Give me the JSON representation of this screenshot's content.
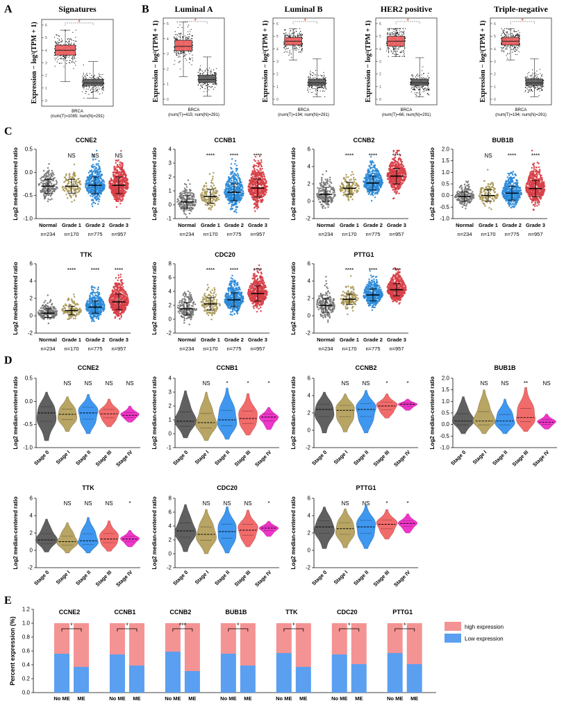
{
  "panel_letters": [
    "A",
    "B",
    "C",
    "D",
    "E"
  ],
  "colors": {
    "tumor": "#f06060",
    "normal": "#606060",
    "grade_normal": "#808080",
    "grade1": "#b5a25c",
    "grade2": "#2f95e8",
    "grade3": "#e8454e",
    "stage0": "#606060",
    "stage1": "#b8a564",
    "stage2": "#3f97ef",
    "stage3": "#f26b6b",
    "stage4": "#ef36c9",
    "high": "#f49393",
    "low": "#5a9ff0",
    "sig": "#d9351f"
  },
  "chart_data": [
    {
      "id": "A",
      "type": "box",
      "panels": [
        {
          "title": "Signatures",
          "ylabel": "Expression − log²(TPM + 1)",
          "ylim": [
            0,
            6
          ],
          "ticks": [
            0,
            1,
            2,
            3,
            4,
            5,
            6
          ],
          "xlabel": "BRCA",
          "xsub": "(num(T)=1085; num(N)=291)",
          "groups": [
            {
              "name": "Tumor",
              "median": 4.0,
              "q1": 3.6,
              "q3": 4.4,
              "min": 1.5,
              "max": 5.6
            },
            {
              "name": "Normal",
              "median": 1.4,
              "q1": 1.2,
              "q3": 1.7,
              "min": 0.2,
              "max": 3.1
            }
          ],
          "sig": "*"
        },
        {
          "title": "Luminal A",
          "ylabel": "Expression − log²(TPM + 1)",
          "ylim": [
            0,
            5
          ],
          "ticks": [
            0,
            1,
            2,
            3,
            4,
            5
          ],
          "xlabel": "BRCA",
          "xsub": "(num(T)=415; num(N)=291)",
          "groups": [
            {
              "name": "Tumor",
              "median": 3.5,
              "q1": 3.2,
              "q3": 3.9,
              "min": 1.5,
              "max": 5.1
            },
            {
              "name": "Normal",
              "median": 1.3,
              "q1": 1.1,
              "q3": 1.6,
              "min": 0.2,
              "max": 2.8
            }
          ],
          "sig": "*"
        },
        {
          "title": "Luminal B",
          "ylabel": "Expression − log²(TPM + 1)",
          "ylim": [
            0,
            6
          ],
          "ticks": [
            0,
            1,
            2,
            3,
            4,
            5,
            6
          ],
          "xlabel": "BRCA",
          "xsub": "(num(T)=194; num(N)=291)",
          "groups": [
            {
              "name": "Tumor",
              "median": 4.6,
              "q1": 4.3,
              "q3": 4.9,
              "min": 3.1,
              "max": 5.6
            },
            {
              "name": "Normal",
              "median": 1.3,
              "q1": 1.1,
              "q3": 1.6,
              "min": 0.2,
              "max": 3.2
            }
          ],
          "sig": "*"
        },
        {
          "title": "HER2 positive",
          "ylabel": "Expression − log²(TPM + 1)",
          "ylim": [
            0,
            6
          ],
          "ticks": [
            0,
            1,
            2,
            3,
            4,
            5,
            6
          ],
          "xlabel": "BRCA",
          "xsub": "(num(T)=66; num(N)=291)",
          "groups": [
            {
              "name": "Tumor",
              "median": 4.6,
              "q1": 4.2,
              "q3": 5.0,
              "min": 3.4,
              "max": 5.6
            },
            {
              "name": "Normal",
              "median": 1.3,
              "q1": 1.1,
              "q3": 1.6,
              "min": 0.2,
              "max": 3.3
            }
          ],
          "sig": "*"
        },
        {
          "title": "Triple-negative",
          "ylabel": "Expression − log²(TPM + 1)",
          "ylim": [
            0,
            6
          ],
          "ticks": [
            0,
            1,
            2,
            3,
            4,
            5,
            6
          ],
          "xlabel": "BRCA",
          "xsub": "(num(T)=194; num(N)=291)",
          "groups": [
            {
              "name": "Tumor",
              "median": 4.6,
              "q1": 4.3,
              "q3": 4.9,
              "min": 3.1,
              "max": 5.6
            },
            {
              "name": "Normal",
              "median": 1.3,
              "q1": 1.1,
              "q3": 1.6,
              "min": 0.2,
              "max": 3.2
            }
          ],
          "sig": "*"
        }
      ]
    },
    {
      "id": "C",
      "type": "scatter",
      "ylabel": "Log2 median-centered ratio",
      "categories": [
        "Normal",
        "Grade 1",
        "Grade 2",
        "Grade 3"
      ],
      "counts": [
        "n=234",
        "n=170",
        "n=775",
        "n=957"
      ],
      "panels": [
        {
          "title": "CCNE2",
          "ylim": [
            -1.0,
            0.5
          ],
          "ticks": [
            "-1.0",
            "-0.5",
            "0.0",
            "0.5"
          ],
          "tickvals": [
            -1,
            -0.5,
            0,
            0.5
          ],
          "medians": [
            -0.3,
            -0.3,
            -0.28,
            -0.28
          ],
          "spread": [
            0.15,
            0.15,
            0.18,
            0.18
          ],
          "sig": [
            "",
            "NS",
            "NS",
            "NS"
          ]
        },
        {
          "title": "CCNB1",
          "ylim": [
            -1,
            4
          ],
          "ticks": [
            "-1",
            "0",
            "1",
            "2",
            "3",
            "4"
          ],
          "tickvals": [
            -1,
            0,
            1,
            2,
            3,
            4
          ],
          "medians": [
            0.2,
            0.6,
            0.9,
            1.2
          ],
          "spread": [
            0.45,
            0.5,
            0.6,
            0.65
          ],
          "sig": [
            "",
            "****",
            "****",
            "****"
          ]
        },
        {
          "title": "CCNB2",
          "ylim": [
            -2,
            6
          ],
          "ticks": [
            "-2",
            "0",
            "2",
            "4",
            "6"
          ],
          "tickvals": [
            -2,
            0,
            2,
            4,
            6
          ],
          "medians": [
            0.8,
            1.5,
            2.1,
            2.9
          ],
          "spread": [
            0.8,
            0.7,
            0.8,
            0.9
          ],
          "sig": [
            "",
            "****",
            "****",
            "****"
          ]
        },
        {
          "title": "BUB1B",
          "ylim": [
            -1.0,
            2.0
          ],
          "ticks": [
            "-1.0",
            "-0.5",
            "0.0",
            "0.5",
            "1.0",
            "1.5",
            "2.0"
          ],
          "tickvals": [
            -1,
            -0.5,
            0,
            0.5,
            1,
            1.5,
            2
          ],
          "medians": [
            -0.05,
            0.0,
            0.1,
            0.3
          ],
          "spread": [
            0.2,
            0.25,
            0.3,
            0.35
          ],
          "sig": [
            "",
            "NS",
            "****",
            "****"
          ]
        },
        {
          "title": "TTK",
          "ylim": [
            -2,
            6
          ],
          "ticks": [
            "-2",
            "0",
            "2",
            "4",
            "6"
          ],
          "tickvals": [
            -2,
            0,
            2,
            4,
            6
          ],
          "medians": [
            0.3,
            0.6,
            1.0,
            1.6
          ],
          "spread": [
            0.5,
            0.5,
            0.7,
            0.9
          ],
          "sig": [
            "",
            "****",
            "****",
            "****"
          ]
        },
        {
          "title": "CDC20",
          "ylim": [
            -2,
            8
          ],
          "ticks": [
            "-2",
            "0",
            "2",
            "4",
            "6",
            "8"
          ],
          "tickvals": [
            -2,
            0,
            2,
            4,
            6,
            8
          ],
          "medians": [
            1.5,
            2.2,
            2.8,
            3.7
          ],
          "spread": [
            0.9,
            0.9,
            1.0,
            1.1
          ],
          "sig": [
            "",
            "****",
            "****",
            "****"
          ]
        },
        {
          "title": "PTTG1",
          "ylim": [
            -2,
            6
          ],
          "ticks": [
            "-2",
            "0",
            "2",
            "4",
            "6"
          ],
          "tickvals": [
            -2,
            0,
            2,
            4,
            6
          ],
          "medians": [
            1.2,
            1.9,
            2.4,
            3.0
          ],
          "spread": [
            0.8,
            0.6,
            0.7,
            0.7
          ],
          "sig": [
            "",
            "****",
            "****",
            "****"
          ]
        }
      ]
    },
    {
      "id": "D",
      "type": "violin",
      "ylabel": "Log2 median-centered ratio",
      "categories": [
        "Stage 0",
        "Stage I",
        "Stage II",
        "Stage III",
        "Stage IV"
      ],
      "panels": [
        {
          "title": "CCNE2",
          "ylim": [
            -1.0,
            0.5
          ],
          "ticks": [
            "-1.0",
            "-0.5",
            "0.0",
            "0.5"
          ],
          "tickvals": [
            -1,
            -0.5,
            0,
            0.5
          ],
          "medians": [
            -0.25,
            -0.28,
            -0.25,
            -0.27,
            -0.3
          ],
          "ranges": [
            [
              -0.85,
              0.2
            ],
            [
              -0.65,
              0.1
            ],
            [
              -0.7,
              0.15
            ],
            [
              -0.55,
              0.05
            ],
            [
              -0.45,
              -0.1
            ]
          ],
          "sig": [
            "",
            "NS",
            "NS",
            "NS",
            "NS"
          ]
        },
        {
          "title": "CCNB1",
          "ylim": [
            -1,
            4
          ],
          "ticks": [
            "-1",
            "0",
            "1",
            "2",
            "3",
            "4"
          ],
          "tickvals": [
            -1,
            0,
            1,
            2,
            3,
            4
          ],
          "medians": [
            0.9,
            0.8,
            1.0,
            1.1,
            1.2
          ],
          "ranges": [
            [
              -0.3,
              3.1
            ],
            [
              -0.5,
              3.0
            ],
            [
              -0.4,
              3.3
            ],
            [
              -0.1,
              2.9
            ],
            [
              0.3,
              1.9
            ]
          ],
          "sig": [
            "",
            "NS",
            "*",
            "*",
            "*"
          ]
        },
        {
          "title": "CCNB2",
          "ylim": [
            -2,
            6
          ],
          "ticks": [
            "-2",
            "0",
            "2",
            "4",
            "6"
          ],
          "tickvals": [
            -2,
            0,
            2,
            4,
            6
          ],
          "medians": [
            2.4,
            2.3,
            2.4,
            2.8,
            3.0
          ],
          "ranges": [
            [
              -0.3,
              4.4
            ],
            [
              -0.2,
              4.2
            ],
            [
              -0.3,
              4.6
            ],
            [
              1.4,
              4.2
            ],
            [
              2.3,
              3.6
            ]
          ],
          "sig": [
            "",
            "NS",
            "NS",
            "*",
            "*"
          ]
        },
        {
          "title": "BUB1B",
          "ylim": [
            -1.0,
            2.0
          ],
          "ticks": [
            "-1.0",
            "-0.5",
            "0.0",
            "0.5",
            "1.0",
            "1.5",
            "2.0"
          ],
          "tickvals": [
            -1,
            -0.5,
            0,
            0.5,
            1,
            1.5,
            2
          ],
          "medians": [
            0.15,
            0.15,
            0.15,
            0.3,
            0.1
          ],
          "ranges": [
            [
              -0.4,
              1.2
            ],
            [
              -0.4,
              1.5
            ],
            [
              -0.4,
              1.1
            ],
            [
              -0.3,
              1.6
            ],
            [
              -0.2,
              0.45
            ]
          ],
          "sig": [
            "",
            "NS",
            "NS",
            "**",
            "NS"
          ]
        },
        {
          "title": "TTK",
          "ylim": [
            -2,
            6
          ],
          "ticks": [
            "-2",
            "0",
            "2",
            "4",
            "6"
          ],
          "tickvals": [
            -2,
            0,
            2,
            4,
            6
          ],
          "medians": [
            1.2,
            1.0,
            1.1,
            1.3,
            1.3
          ],
          "ranges": [
            [
              -0.2,
              3.6
            ],
            [
              -0.3,
              3.2
            ],
            [
              -0.3,
              3.8
            ],
            [
              -0.1,
              3.4
            ],
            [
              0.4,
              2.3
            ]
          ],
          "sig": [
            "",
            "NS",
            "NS",
            "NS",
            "*"
          ]
        },
        {
          "title": "CDC20",
          "ylim": [
            -2,
            8
          ],
          "ticks": [
            "-2",
            "0",
            "2",
            "4",
            "6",
            "8"
          ],
          "tickvals": [
            -2,
            0,
            2,
            4,
            6,
            8
          ],
          "medians": [
            3.3,
            2.8,
            3.2,
            3.4,
            3.7
          ],
          "ranges": [
            [
              0.3,
              7.1
            ],
            [
              0.0,
              6.4
            ],
            [
              0.1,
              6.8
            ],
            [
              1.0,
              6.3
            ],
            [
              2.5,
              4.7
            ]
          ],
          "sig": [
            "",
            "NS",
            "NS",
            "NS",
            "*"
          ]
        },
        {
          "title": "PTTG1",
          "ylim": [
            -2,
            6
          ],
          "ticks": [
            "-2",
            "0",
            "2",
            "4",
            "6"
          ],
          "tickvals": [
            -2,
            0,
            2,
            4,
            6
          ],
          "medians": [
            2.7,
            2.5,
            2.7,
            3.0,
            3.1
          ],
          "ranges": [
            [
              0.2,
              5.0
            ],
            [
              0.3,
              4.8
            ],
            [
              0.2,
              5.2
            ],
            [
              1.3,
              4.7
            ],
            [
              2.0,
              4.2
            ]
          ],
          "sig": [
            "",
            "NS",
            "NS",
            "*",
            "*"
          ]
        }
      ]
    },
    {
      "id": "E",
      "type": "bar",
      "stacked": true,
      "ylabel": "Percent expression (%)",
      "ylim": [
        0,
        1.2
      ],
      "ticks": [
        "0.0",
        "0.2",
        "0.4",
        "0.6",
        "0.8",
        "1.0",
        "1.2"
      ],
      "tickvals": [
        0,
        0.2,
        0.4,
        0.6,
        0.8,
        1.0,
        1.2
      ],
      "categories": [
        "No ME",
        "ME"
      ],
      "legend": [
        "high expression",
        "Low expression"
      ],
      "groups": [
        {
          "title": "CCNE2",
          "low": [
            0.56,
            0.37
          ],
          "sig": "*"
        },
        {
          "title": "CCNB1",
          "low": [
            0.55,
            0.39
          ],
          "sig": "*"
        },
        {
          "title": "CCNB2",
          "low": [
            0.59,
            0.31
          ],
          "sig": "***"
        },
        {
          "title": "BUB1B",
          "low": [
            0.56,
            0.39
          ],
          "sig": "*"
        },
        {
          "title": "TTK",
          "low": [
            0.57,
            0.37
          ],
          "sig": "*"
        },
        {
          "title": "CDC20",
          "low": [
            0.55,
            0.41
          ],
          "sig": "*"
        },
        {
          "title": "PTTG1",
          "low": [
            0.57,
            0.41
          ],
          "sig": "*"
        }
      ]
    }
  ]
}
